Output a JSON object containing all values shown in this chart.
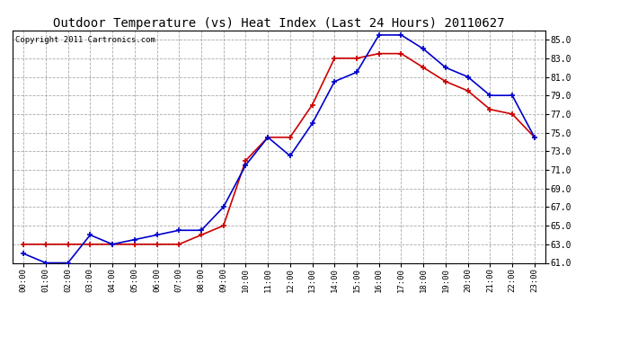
{
  "title": "Outdoor Temperature (vs) Heat Index (Last 24 Hours) 20110627",
  "copyright": "Copyright 2011 Cartronics.com",
  "hours": [
    "00:00",
    "01:00",
    "02:00",
    "03:00",
    "04:00",
    "05:00",
    "06:00",
    "07:00",
    "08:00",
    "09:00",
    "10:00",
    "11:00",
    "12:00",
    "13:00",
    "14:00",
    "15:00",
    "16:00",
    "17:00",
    "18:00",
    "19:00",
    "20:00",
    "21:00",
    "22:00",
    "23:00"
  ],
  "outdoor_temp": [
    63.0,
    63.0,
    63.0,
    63.0,
    63.0,
    63.0,
    63.0,
    63.0,
    64.0,
    65.0,
    72.0,
    74.5,
    74.5,
    78.0,
    83.0,
    83.0,
    83.5,
    83.5,
    82.0,
    80.5,
    79.5,
    77.5,
    77.0,
    74.5
  ],
  "heat_index": [
    62.0,
    61.0,
    61.0,
    64.0,
    63.0,
    63.5,
    64.0,
    64.5,
    64.5,
    67.0,
    71.5,
    74.5,
    72.5,
    76.0,
    80.5,
    81.5,
    85.5,
    85.5,
    84.0,
    82.0,
    81.0,
    79.0,
    79.0,
    74.5
  ],
  "temp_color": "#cc0000",
  "heat_color": "#0000cc",
  "ylim": [
    61.0,
    86.0
  ],
  "yticks": [
    61.0,
    63.0,
    65.0,
    67.0,
    69.0,
    71.0,
    73.0,
    75.0,
    77.0,
    79.0,
    81.0,
    83.0,
    85.0
  ],
  "bg_color": "#ffffff",
  "grid_color": "#aaaaaa",
  "title_fontsize": 10,
  "copyright_fontsize": 6.5,
  "fig_width": 6.9,
  "fig_height": 3.75
}
